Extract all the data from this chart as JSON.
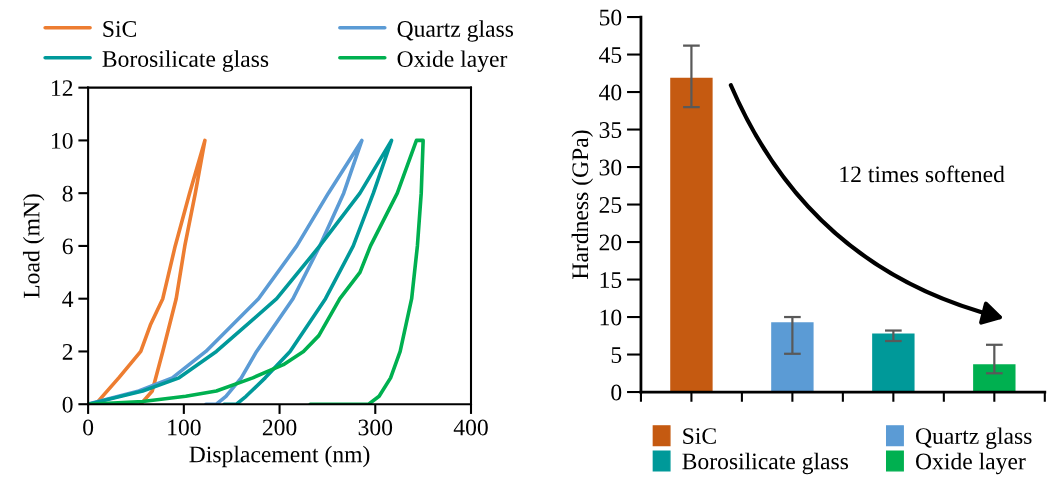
{
  "chart_data": [
    {
      "type": "line",
      "xlabel": "Displacement (nm)",
      "ylabel": "Load (mN)",
      "xlim": [
        0,
        400
      ],
      "xticks": [
        0,
        100,
        200,
        300,
        400
      ],
      "ylim": [
        0,
        12
      ],
      "yticks": [
        0,
        2,
        4,
        6,
        8,
        10,
        12
      ],
      "legend": "top",
      "grid": false,
      "marker": "none",
      "line_style": "solid",
      "series": [
        {
          "name": "SiC",
          "color": "#ed7d31",
          "x": [
            8,
            15,
            32,
            55,
            65,
            78,
            91,
            106,
            122,
            112,
            101,
            92,
            78,
            67,
            55
          ],
          "values": [
            0,
            0.3,
            1,
            2,
            3,
            4,
            6,
            8,
            10,
            8,
            6,
            4,
            2,
            0.5,
            0
          ]
        },
        {
          "name": "Quartz glass",
          "color": "#5b9bd5",
          "x": [
            0,
            53,
            88,
            123,
            178,
            218,
            251,
            286,
            267,
            242,
            214,
            176,
            160,
            144,
            134,
            123
          ],
          "values": [
            0,
            0.5,
            1,
            2,
            4,
            6,
            8,
            10,
            8,
            6,
            4,
            2,
            1,
            0.3,
            0,
            0
          ]
        },
        {
          "name": "Borosilicate glass",
          "color": "#00999a",
          "x": [
            0,
            57,
            95,
            134,
            197,
            242,
            284,
            317,
            298,
            277,
            248,
            211,
            185,
            165,
            155,
            142
          ],
          "values": [
            0,
            0.5,
            1,
            2,
            4,
            6,
            8,
            10,
            8,
            6,
            4,
            2,
            1,
            0.3,
            0,
            0
          ]
        },
        {
          "name": "Oxide layer",
          "color": "#00b050",
          "x": [
            0,
            57,
            102,
            134,
            172,
            204,
            225,
            241,
            263,
            284,
            295,
            323,
            343,
            350,
            348,
            344,
            338,
            326,
            316,
            304,
            293,
            232
          ],
          "values": [
            0,
            0.1,
            0.3,
            0.5,
            1,
            1.5,
            2,
            2.6,
            4,
            5,
            6,
            8,
            10,
            10,
            8,
            6,
            4,
            2,
            1,
            0.3,
            0,
            0
          ]
        }
      ]
    },
    {
      "type": "bar",
      "ylabel": "Hardness (GPa)",
      "categories": [
        null,
        null,
        null,
        null
      ],
      "ylim": [
        0,
        50
      ],
      "yticks": [
        0,
        5,
        10,
        15,
        20,
        25,
        30,
        35,
        40,
        45,
        50
      ],
      "legend": "bottom",
      "grid": false,
      "annotations": [
        "12 times softened"
      ],
      "series": [
        {
          "name": "SiC",
          "color": "#c55a11",
          "values": [
            41.9,
            null,
            null,
            null
          ],
          "errors": [
            [
              38,
              46.2
            ],
            null,
            null,
            null
          ]
        },
        {
          "name": "Quartz glass",
          "color": "#5b9bd5",
          "values": [
            null,
            9.3,
            null,
            null
          ],
          "errors": [
            null,
            [
              5.1,
              10.0
            ],
            null,
            null
          ]
        },
        {
          "name": "Borosilicate glass",
          "color": "#009999",
          "values": [
            null,
            null,
            7.8,
            null
          ],
          "errors": [
            null,
            null,
            [
              6.8,
              8.2
            ],
            null
          ]
        },
        {
          "name": "Oxide layer",
          "color": "#00b050",
          "values": [
            null,
            null,
            null,
            3.7
          ],
          "errors": [
            null,
            null,
            null,
            [
              2.5,
              6.3
            ]
          ]
        }
      ]
    }
  ]
}
